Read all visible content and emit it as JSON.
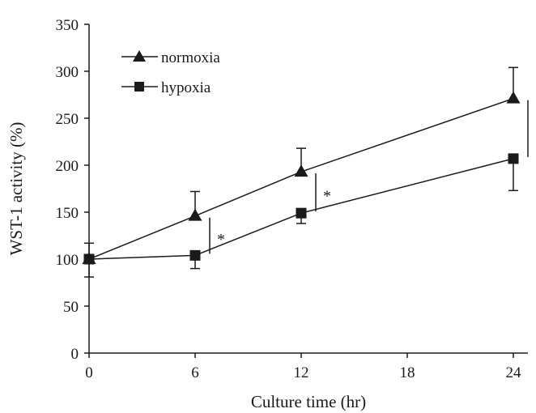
{
  "chart_data": {
    "type": "line",
    "title": "",
    "xlabel": "Culture time (hr)",
    "ylabel": "WST-1 activity (%)",
    "xlim": [
      0,
      24
    ],
    "ylim": [
      0,
      350
    ],
    "xticks": [
      0,
      6,
      12,
      18,
      24
    ],
    "yticks": [
      0,
      50,
      100,
      150,
      200,
      250,
      300,
      350
    ],
    "grid": false,
    "legend_position": "top-left",
    "series": [
      {
        "name": "normoxia",
        "marker": "triangle",
        "color": "#1a1a1a",
        "x": [
          0,
          6,
          12,
          24
        ],
        "values": [
          100,
          146,
          193,
          271
        ],
        "error_up": [
          17,
          26,
          25,
          33
        ],
        "error_down": [
          0,
          0,
          0,
          0
        ]
      },
      {
        "name": "hypoxia",
        "marker": "square",
        "color": "#1a1a1a",
        "x": [
          0,
          6,
          12,
          24
        ],
        "values": [
          100,
          104,
          149,
          207
        ],
        "error_up": [
          0,
          0,
          0,
          0
        ],
        "error_down": [
          19,
          14,
          11,
          34
        ]
      }
    ],
    "annotations": [
      {
        "text": "*",
        "x": 6,
        "y_range": [
          104,
          146
        ]
      },
      {
        "text": "*",
        "x": 12,
        "y_range": [
          149,
          193
        ]
      },
      {
        "text": "*",
        "x": 24,
        "y_range": [
          207,
          271
        ]
      }
    ]
  }
}
